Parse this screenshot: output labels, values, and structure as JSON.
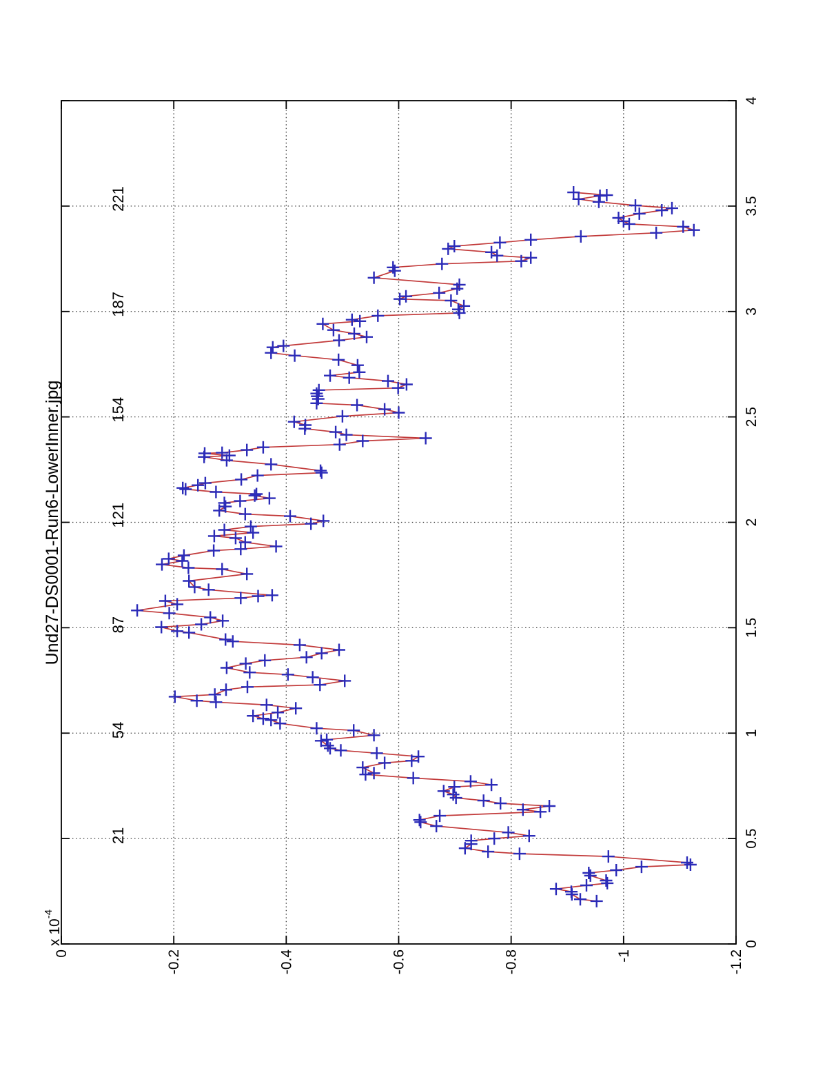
{
  "chart_data": {
    "type": "line",
    "title": "Und27-DS0001-Run6-LowerInner.jpg",
    "xlabel": "",
    "ylabel": "",
    "y_axis_multiplier_base": "x 10",
    "y_axis_multiplier_exp": "-4",
    "xlim": [
      0,
      4
    ],
    "ylim": [
      -1.2,
      0
    ],
    "x_ticks": [
      0,
      0.5,
      1,
      1.5,
      2,
      2.5,
      3,
      3.5,
      4
    ],
    "x_tick_labels": [
      "0",
      "0.5",
      "1",
      "1.5",
      "2",
      "2.5",
      "3",
      "3.5",
      "4"
    ],
    "y_ticks": [
      0,
      -0.2,
      -0.4,
      -0.6,
      -0.8,
      -1,
      -1.2
    ],
    "y_tick_labels": [
      "0",
      "-0.2",
      "-0.4",
      "-0.6",
      "-0.8",
      "-1",
      "-1.2"
    ],
    "grid": "dotted",
    "legend": null,
    "top_axis_labels": [
      {
        "x": 0.5,
        "label": "21"
      },
      {
        "x": 1.0,
        "label": "54"
      },
      {
        "x": 1.5,
        "label": "87"
      },
      {
        "x": 2.0,
        "label": "121"
      },
      {
        "x": 2.5,
        "label": "154"
      },
      {
        "x": 3.0,
        "label": "187"
      },
      {
        "x": 3.5,
        "label": "221"
      }
    ],
    "line_color": "#c23a3a",
    "marker_color": "#2b2bb8",
    "marker": "+",
    "series": [
      {
        "points": [
          [
            0.203,
            -0.952
          ],
          [
            0.212,
            -0.923
          ],
          [
            0.235,
            -0.908
          ],
          [
            0.248,
            -0.907
          ],
          [
            0.261,
            -0.88
          ],
          [
            0.278,
            -0.934
          ],
          [
            0.288,
            -0.971
          ],
          [
            0.301,
            -0.969
          ],
          [
            0.324,
            -0.941
          ],
          [
            0.337,
            -0.938
          ],
          [
            0.35,
            -0.987
          ],
          [
            0.366,
            -1.032
          ],
          [
            0.376,
            -1.119
          ],
          [
            0.386,
            -1.113
          ],
          [
            0.415,
            -0.973
          ],
          [
            0.428,
            -0.815
          ],
          [
            0.438,
            -0.759
          ],
          [
            0.454,
            -0.718
          ],
          [
            0.474,
            -0.729
          ],
          [
            0.49,
            -0.729
          ],
          [
            0.5,
            -0.77
          ],
          [
            0.513,
            -0.832
          ],
          [
            0.529,
            -0.795
          ],
          [
            0.559,
            -0.667
          ],
          [
            0.578,
            -0.639
          ],
          [
            0.588,
            -0.637
          ],
          [
            0.608,
            -0.673
          ],
          [
            0.627,
            -0.852
          ],
          [
            0.637,
            -0.821
          ],
          [
            0.654,
            -0.868
          ],
          [
            0.667,
            -0.781
          ],
          [
            0.68,
            -0.751
          ],
          [
            0.693,
            -0.702
          ],
          [
            0.709,
            -0.697
          ],
          [
            0.725,
            -0.68
          ],
          [
            0.745,
            -0.699
          ],
          [
            0.755,
            -0.765
          ],
          [
            0.771,
            -0.728
          ],
          [
            0.787,
            -0.626
          ],
          [
            0.804,
            -0.541
          ],
          [
            0.81,
            -0.556
          ],
          [
            0.837,
            -0.536
          ],
          [
            0.859,
            -0.575
          ],
          [
            0.869,
            -0.623
          ],
          [
            0.889,
            -0.635
          ],
          [
            0.905,
            -0.561
          ],
          [
            0.918,
            -0.497
          ],
          [
            0.928,
            -0.478
          ],
          [
            0.941,
            -0.474
          ],
          [
            0.964,
            -0.462
          ],
          [
            0.969,
            -0.472
          ],
          [
            0.99,
            -0.556
          ],
          [
            1.013,
            -0.52
          ],
          [
            1.023,
            -0.454
          ],
          [
            1.046,
            -0.389
          ],
          [
            1.062,
            -0.373
          ],
          [
            1.069,
            -0.359
          ],
          [
            1.082,
            -0.341
          ],
          [
            1.098,
            -0.385
          ],
          [
            1.118,
            -0.417
          ],
          [
            1.134,
            -0.365
          ],
          [
            1.147,
            -0.275
          ],
          [
            1.154,
            -0.241
          ],
          [
            1.173,
            -0.202
          ],
          [
            1.183,
            -0.273
          ],
          [
            1.206,
            -0.293
          ],
          [
            1.219,
            -0.331
          ],
          [
            1.229,
            -0.46
          ],
          [
            1.248,
            -0.504
          ],
          [
            1.265,
            -0.447
          ],
          [
            1.278,
            -0.403
          ],
          [
            1.288,
            -0.335
          ],
          [
            1.31,
            -0.294
          ],
          [
            1.33,
            -0.328
          ],
          [
            1.345,
            -0.362
          ],
          [
            1.36,
            -0.436
          ],
          [
            1.379,
            -0.463
          ],
          [
            1.395,
            -0.494
          ],
          [
            1.418,
            -0.424
          ],
          [
            1.435,
            -0.305
          ],
          [
            1.444,
            -0.292
          ],
          [
            1.477,
            -0.227
          ],
          [
            1.484,
            -0.206
          ],
          [
            1.503,
            -0.178
          ],
          [
            1.516,
            -0.249
          ],
          [
            1.533,
            -0.287
          ],
          [
            1.549,
            -0.265
          ],
          [
            1.569,
            -0.192
          ],
          [
            1.582,
            -0.135
          ],
          [
            1.611,
            -0.206
          ],
          [
            1.627,
            -0.185
          ],
          [
            1.641,
            -0.319
          ],
          [
            1.65,
            -0.35
          ],
          [
            1.654,
            -0.375
          ],
          [
            1.68,
            -0.262
          ],
          [
            1.693,
            -0.237
          ],
          [
            1.722,
            -0.227
          ],
          [
            1.755,
            -0.33
          ],
          [
            1.778,
            -0.286
          ],
          [
            1.784,
            -0.226
          ],
          [
            1.8,
            -0.179
          ],
          [
            1.817,
            -0.215
          ],
          [
            1.827,
            -0.191
          ],
          [
            1.843,
            -0.218
          ],
          [
            1.866,
            -0.271
          ],
          [
            1.873,
            -0.319
          ],
          [
            1.886,
            -0.382
          ],
          [
            1.905,
            -0.327
          ],
          [
            1.925,
            -0.31
          ],
          [
            1.935,
            -0.272
          ],
          [
            1.951,
            -0.341
          ],
          [
            1.964,
            -0.29
          ],
          [
            1.98,
            -0.337
          ],
          [
            1.993,
            -0.444
          ],
          [
            2.007,
            -0.466
          ],
          [
            2.029,
            -0.407
          ],
          [
            2.039,
            -0.327
          ],
          [
            2.056,
            -0.281
          ],
          [
            2.075,
            -0.292
          ],
          [
            2.092,
            -0.29
          ],
          [
            2.101,
            -0.318
          ],
          [
            2.114,
            -0.37
          ],
          [
            2.127,
            -0.344
          ],
          [
            2.134,
            -0.347
          ],
          [
            2.144,
            -0.275
          ],
          [
            2.157,
            -0.221
          ],
          [
            2.163,
            -0.216
          ],
          [
            2.176,
            -0.243
          ],
          [
            2.186,
            -0.256
          ],
          [
            2.203,
            -0.32
          ],
          [
            2.222,
            -0.349
          ],
          [
            2.235,
            -0.463
          ],
          [
            2.245,
            -0.461
          ],
          [
            2.275,
            -0.373
          ],
          [
            2.294,
            -0.294
          ],
          [
            2.31,
            -0.254
          ],
          [
            2.317,
            -0.299
          ],
          [
            2.327,
            -0.255
          ],
          [
            2.33,
            -0.286
          ],
          [
            2.343,
            -0.33
          ],
          [
            2.356,
            -0.359
          ],
          [
            2.369,
            -0.495
          ],
          [
            2.386,
            -0.536
          ],
          [
            2.399,
            -0.648
          ],
          [
            2.415,
            -0.507
          ],
          [
            2.428,
            -0.488
          ],
          [
            2.444,
            -0.433
          ],
          [
            2.461,
            -0.434
          ],
          [
            2.477,
            -0.414
          ],
          [
            2.503,
            -0.5
          ],
          [
            2.52,
            -0.6
          ],
          [
            2.536,
            -0.575
          ],
          [
            2.556,
            -0.526
          ],
          [
            2.565,
            -0.454
          ],
          [
            2.585,
            -0.457
          ],
          [
            2.598,
            -0.455
          ],
          [
            2.611,
            -0.454
          ],
          [
            2.627,
            -0.458
          ],
          [
            2.637,
            -0.599
          ],
          [
            2.654,
            -0.614
          ],
          [
            2.67,
            -0.581
          ],
          [
            2.686,
            -0.512
          ],
          [
            2.696,
            -0.478
          ],
          [
            2.712,
            -0.53
          ],
          [
            2.745,
            -0.527
          ],
          [
            2.771,
            -0.493
          ],
          [
            2.791,
            -0.415
          ],
          [
            2.804,
            -0.373
          ],
          [
            2.83,
            -0.376
          ],
          [
            2.837,
            -0.395
          ],
          [
            2.863,
            -0.494
          ],
          [
            2.879,
            -0.543
          ],
          [
            2.895,
            -0.521
          ],
          [
            2.912,
            -0.484
          ],
          [
            2.941,
            -0.465
          ],
          [
            2.954,
            -0.531
          ],
          [
            2.961,
            -0.517
          ],
          [
            2.98,
            -0.563
          ],
          [
            2.993,
            -0.708
          ],
          [
            3.01,
            -0.706
          ],
          [
            3.026,
            -0.716
          ],
          [
            3.052,
            -0.693
          ],
          [
            3.059,
            -0.602
          ],
          [
            3.072,
            -0.613
          ],
          [
            3.088,
            -0.672
          ],
          [
            3.108,
            -0.704
          ],
          [
            3.127,
            -0.708
          ],
          [
            3.16,
            -0.556
          ],
          [
            3.193,
            -0.593
          ],
          [
            3.209,
            -0.59
          ],
          [
            3.226,
            -0.677
          ],
          [
            3.239,
            -0.818
          ],
          [
            3.255,
            -0.835
          ],
          [
            3.265,
            -0.775
          ],
          [
            3.281,
            -0.765
          ],
          [
            3.297,
            -0.688
          ],
          [
            3.31,
            -0.699
          ],
          [
            3.327,
            -0.78
          ],
          [
            3.34,
            -0.835
          ],
          [
            3.356,
            -0.924
          ],
          [
            3.373,
            -1.058
          ],
          [
            3.386,
            -1.125
          ],
          [
            3.402,
            -1.106
          ],
          [
            3.415,
            -1.01
          ],
          [
            3.428,
            -1.0
          ],
          [
            3.444,
            -0.991
          ],
          [
            3.464,
            -1.028
          ],
          [
            3.48,
            -1.068
          ],
          [
            3.49,
            -1.086
          ],
          [
            3.503,
            -1.021
          ],
          [
            3.52,
            -0.956
          ],
          [
            3.533,
            -0.92
          ],
          [
            3.549,
            -0.958
          ],
          [
            3.552,
            -0.97
          ],
          [
            3.565,
            -0.911
          ]
        ]
      }
    ]
  }
}
